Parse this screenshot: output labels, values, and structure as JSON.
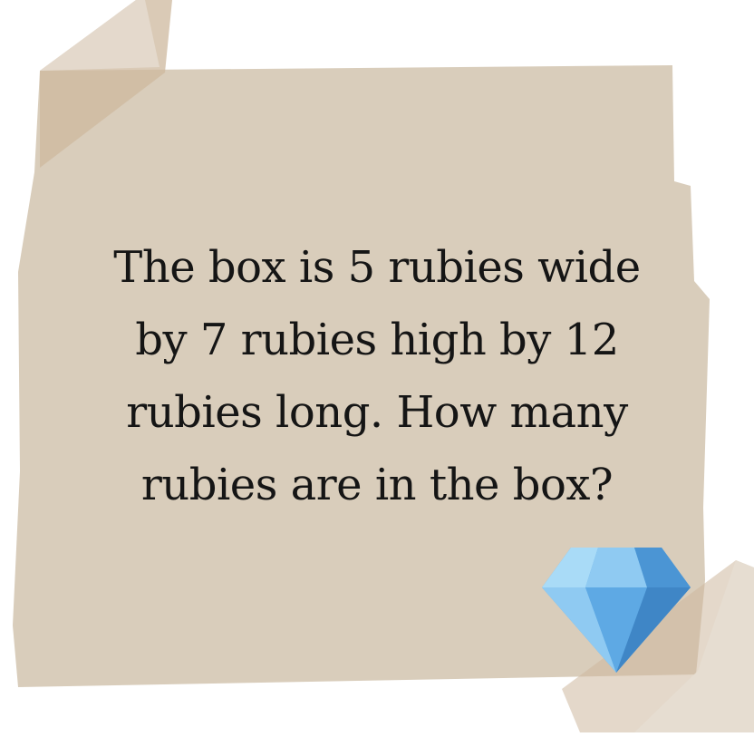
{
  "card": {
    "question": "The box is 5 rubies wide by 7 rubies high by 12 rubies long. How many rubies are in the box?"
  },
  "decor": {
    "gem_icon": "diamond-gem-icon",
    "colors": {
      "paper": "#d9cdbb",
      "tape": "#cdb89e",
      "text": "#151515",
      "gem_light": "#8fcaf2",
      "gem_mid": "#5ea9e4",
      "gem_dark": "#3f86c6"
    }
  }
}
